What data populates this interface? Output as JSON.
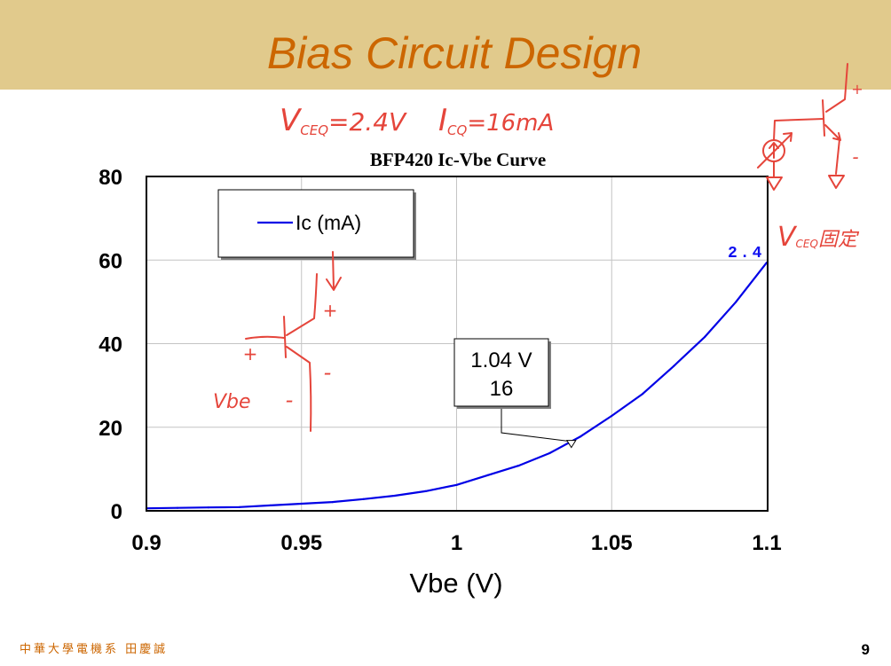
{
  "slide": {
    "title": "Bias Circuit Design",
    "footer": "中華大學電機系 田慶誠",
    "page_number": "9"
  },
  "colors": {
    "header_band": "#E1CA8C",
    "title_text": "#CC6600",
    "footer_text": "#CC6600",
    "handwriting": "#E5453B",
    "series_line": "#0000E6"
  },
  "handwritten": {
    "vceq_symbol": "V",
    "vceq_subscript": "CEQ",
    "vceq_value": "=2.4V",
    "icq_symbol": "I",
    "icq_subscript": "CQ",
    "icq_value": "=16mA",
    "fixed_symbol": "V",
    "fixed_subscript": "CEQ",
    "fixed_text": "固定",
    "vbe_label": "Vbe",
    "plus": "+",
    "minus": "-"
  },
  "chart_data": {
    "type": "line",
    "title": "BFP420 Ic-Vbe Curve",
    "xlabel": "Vbe (V)",
    "ylabel": "",
    "xlim": [
      0.9,
      1.1
    ],
    "ylim": [
      0,
      80
    ],
    "x_ticks": [
      0.9,
      0.95,
      1.0,
      1.05,
      1.1
    ],
    "x_tick_labels": [
      "0.9",
      "0.95",
      "1",
      "1.05",
      "1.1"
    ],
    "y_ticks": [
      0,
      20,
      40,
      60,
      80
    ],
    "y_tick_labels": [
      "0",
      "20",
      "40",
      "60",
      "80"
    ],
    "grid": true,
    "legend_position": "top-left",
    "x": [
      0.9,
      0.91,
      0.92,
      0.93,
      0.94,
      0.95,
      0.96,
      0.97,
      0.98,
      0.99,
      1.0,
      1.01,
      1.02,
      1.03,
      1.04,
      1.05,
      1.06,
      1.07,
      1.08,
      1.09,
      1.1
    ],
    "series": [
      {
        "name": "Ic (mA)",
        "color": "#0000E6",
        "values": [
          0.6,
          0.7,
          0.8,
          0.9,
          1.3,
          1.7,
          2.1,
          2.8,
          3.6,
          4.7,
          6.2,
          8.5,
          10.8,
          13.8,
          17.8,
          22.7,
          28.0,
          34.6,
          41.6,
          49.9,
          59.4
        ]
      }
    ],
    "annotations": [
      {
        "x": 1.037,
        "y": 16,
        "lines": [
          "1.04 V",
          "16"
        ]
      }
    ],
    "point_labels": [
      {
        "x": 1.1,
        "y": 59.4,
        "text": "2.4"
      }
    ]
  }
}
